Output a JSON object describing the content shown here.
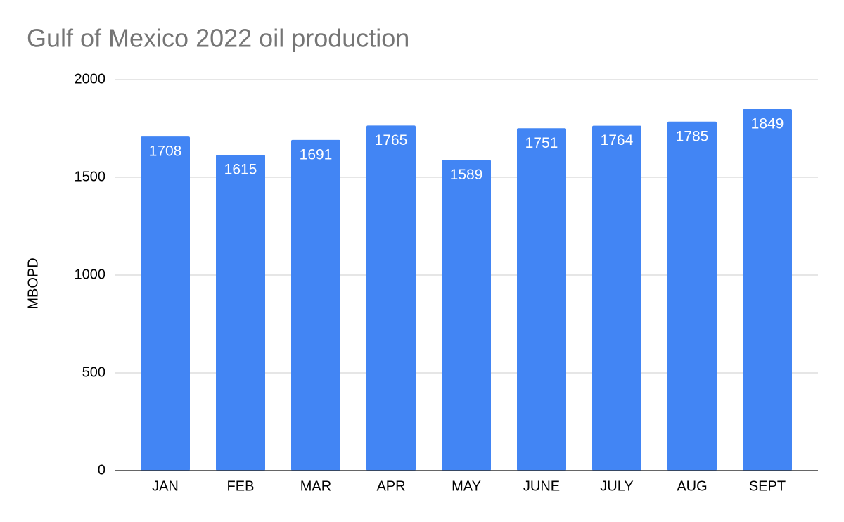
{
  "chart_data": {
    "type": "bar",
    "title": "Gulf of Mexico 2022 oil production",
    "y_label": "MBOPD",
    "categories": [
      "JAN",
      "FEB",
      "MAR",
      "APR",
      "MAY",
      "JUNE",
      "JULY",
      "AUG",
      "SEPT"
    ],
    "values": [
      1708,
      1615,
      1691,
      1765,
      1589,
      1751,
      1764,
      1785,
      1849
    ],
    "color": "#4285f4",
    "ylim": [
      0,
      2000
    ],
    "yticks": [
      0,
      500,
      1000,
      1500,
      2000
    ],
    "grid": true,
    "data_labels": true
  }
}
